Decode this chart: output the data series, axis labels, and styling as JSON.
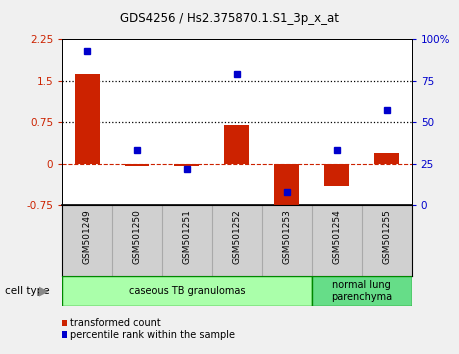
{
  "title": "GDS4256 / Hs2.375870.1.S1_3p_x_at",
  "samples": [
    "GSM501249",
    "GSM501250",
    "GSM501251",
    "GSM501252",
    "GSM501253",
    "GSM501254",
    "GSM501255"
  ],
  "red_values": [
    1.62,
    -0.05,
    -0.05,
    0.7,
    -0.85,
    -0.4,
    0.2
  ],
  "blue_values": [
    93,
    33,
    22,
    79,
    8,
    33,
    57
  ],
  "red_color": "#cc2200",
  "blue_color": "#0000cc",
  "ylim_left": [
    -0.75,
    2.25
  ],
  "ylim_right": [
    0,
    100
  ],
  "yticks_left": [
    -0.75,
    0,
    0.75,
    1.5,
    2.25
  ],
  "yticks_right": [
    0,
    25,
    50,
    75,
    100
  ],
  "ytick_labels_left": [
    "-0.75",
    "0",
    "0.75",
    "1.5",
    "2.25"
  ],
  "ytick_labels_right": [
    "0",
    "25",
    "50",
    "75",
    "100%"
  ],
  "hlines_dotted": [
    0.75,
    1.5
  ],
  "hline_dashed": 0,
  "cell_type_groups": [
    {
      "label": "caseous TB granulomas",
      "indices": [
        0,
        1,
        2,
        3,
        4
      ],
      "color": "#aaffaa"
    },
    {
      "label": "normal lung\nparenchyma",
      "indices": [
        5,
        6
      ],
      "color": "#66dd88"
    }
  ],
  "cell_type_label": "cell type",
  "legend_red": "transformed count",
  "legend_blue": "percentile rank within the sample",
  "bar_width": 0.5,
  "bg_color": "#f0f0f0",
  "plot_bg": "#ffffff",
  "sample_box_color": "#d0d0d0"
}
